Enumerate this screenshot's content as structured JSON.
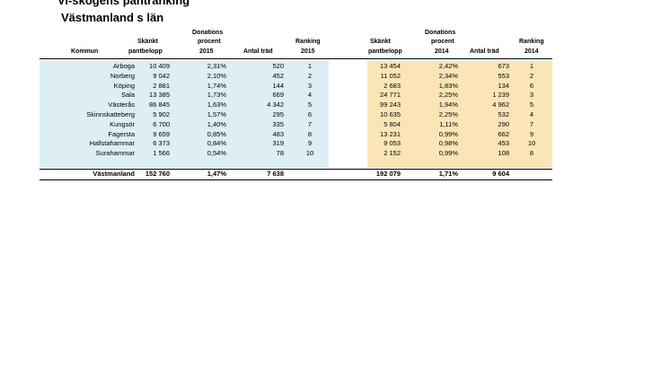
{
  "title": "Vi-skogens pantranking",
  "subtitle": "Västmanland  s län",
  "headers": {
    "kommun": "Kommun",
    "skankt_line1": "Skänkt",
    "skankt_line2": "pantbelopp",
    "donations_line1": "Donations",
    "donations_line2": "procent",
    "year_2015": "2015",
    "year_2014": "2014",
    "antal": "Antal träd",
    "ranking": "Ranking"
  },
  "rows": [
    {
      "kommun": "Arboga",
      "b2015": "10 409",
      "p2015": "2,31%",
      "t2015": "520",
      "r2015": "1",
      "b2014": "13 454",
      "p2014": "2,42%",
      "t2014": "673",
      "r2014": "1"
    },
    {
      "kommun": "Norberg",
      "b2015": "9 042",
      "p2015": "2,10%",
      "t2015": "452",
      "r2015": "2",
      "b2014": "11 052",
      "p2014": "2,34%",
      "t2014": "553",
      "r2014": "2"
    },
    {
      "kommun": "Köping",
      "b2015": "2 881",
      "p2015": "1,74%",
      "t2015": "144",
      "r2015": "3",
      "b2014": "2 683",
      "p2014": "1,83%",
      "t2014": "134",
      "r2014": "6"
    },
    {
      "kommun": "Sala",
      "b2015": "13 385",
      "p2015": "1,73%",
      "t2015": "669",
      "r2015": "4",
      "b2014": "24 771",
      "p2014": "2,25%",
      "t2014": "1 239",
      "r2014": "3"
    },
    {
      "kommun": "Västerås",
      "b2015": "86 845",
      "p2015": "1,63%",
      "t2015": "4 342",
      "r2015": "5",
      "b2014": "99 243",
      "p2014": "1,94%",
      "t2014": "4 962",
      "r2014": "5"
    },
    {
      "kommun": "Skinnskatteberg",
      "b2015": "5 902",
      "p2015": "1,57%",
      "t2015": "295",
      "r2015": "6",
      "b2014": "10 635",
      "p2014": "2,25%",
      "t2014": "532",
      "r2014": "4"
    },
    {
      "kommun": "Kungsör",
      "b2015": "6 700",
      "p2015": "1,40%",
      "t2015": "335",
      "r2015": "7",
      "b2014": "5 804",
      "p2014": "1,11%",
      "t2014": "290",
      "r2014": "7"
    },
    {
      "kommun": "Fagersta",
      "b2015": "9 659",
      "p2015": "0,85%",
      "t2015": "483",
      "r2015": "8",
      "b2014": "13 231",
      "p2014": "0,99%",
      "t2014": "662",
      "r2014": "9"
    },
    {
      "kommun": "Hallstahammar",
      "b2015": "6 373",
      "p2015": "0,84%",
      "t2015": "319",
      "r2015": "9",
      "b2014": "9 053",
      "p2014": "0,98%",
      "t2014": "453",
      "r2014": "10"
    },
    {
      "kommun": "Surahammar",
      "b2015": "1 566",
      "p2015": "0,54%",
      "t2015": "78",
      "r2015": "10",
      "b2014": "2 152",
      "p2014": "0,99%",
      "t2014": "108",
      "r2014": "8"
    }
  ],
  "total": {
    "kommun": "Västmanland",
    "b2015": "152 760",
    "p2015": "1,47%",
    "t2015": "7 638",
    "b2014": "192 079",
    "p2014": "1,71%",
    "t2014": "9 604"
  },
  "colors": {
    "blue_fill": "#ddeef4",
    "yellow_fill": "#fbe5b6"
  }
}
